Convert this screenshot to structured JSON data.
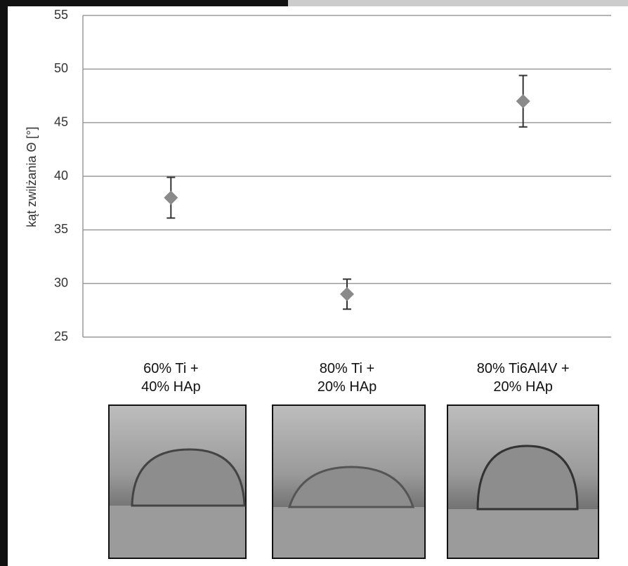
{
  "chart_data": {
    "type": "scatter",
    "y_label": "kąt zwilżania Θ [°]",
    "categories": [
      "60% Ti +\n40% HAp",
      "80% Ti +\n20% HAp",
      "80% Ti6Al4V +\n20% HAp"
    ],
    "series": [
      {
        "color": "#8a8a8a",
        "values": [
          38,
          29,
          47
        ],
        "errors": [
          1.9,
          1.4,
          2.4
        ]
      }
    ],
    "ylim": [
      25,
      55
    ],
    "yticks": [
      25,
      30,
      35,
      40,
      45,
      50,
      55
    ],
    "grid": true
  }
}
